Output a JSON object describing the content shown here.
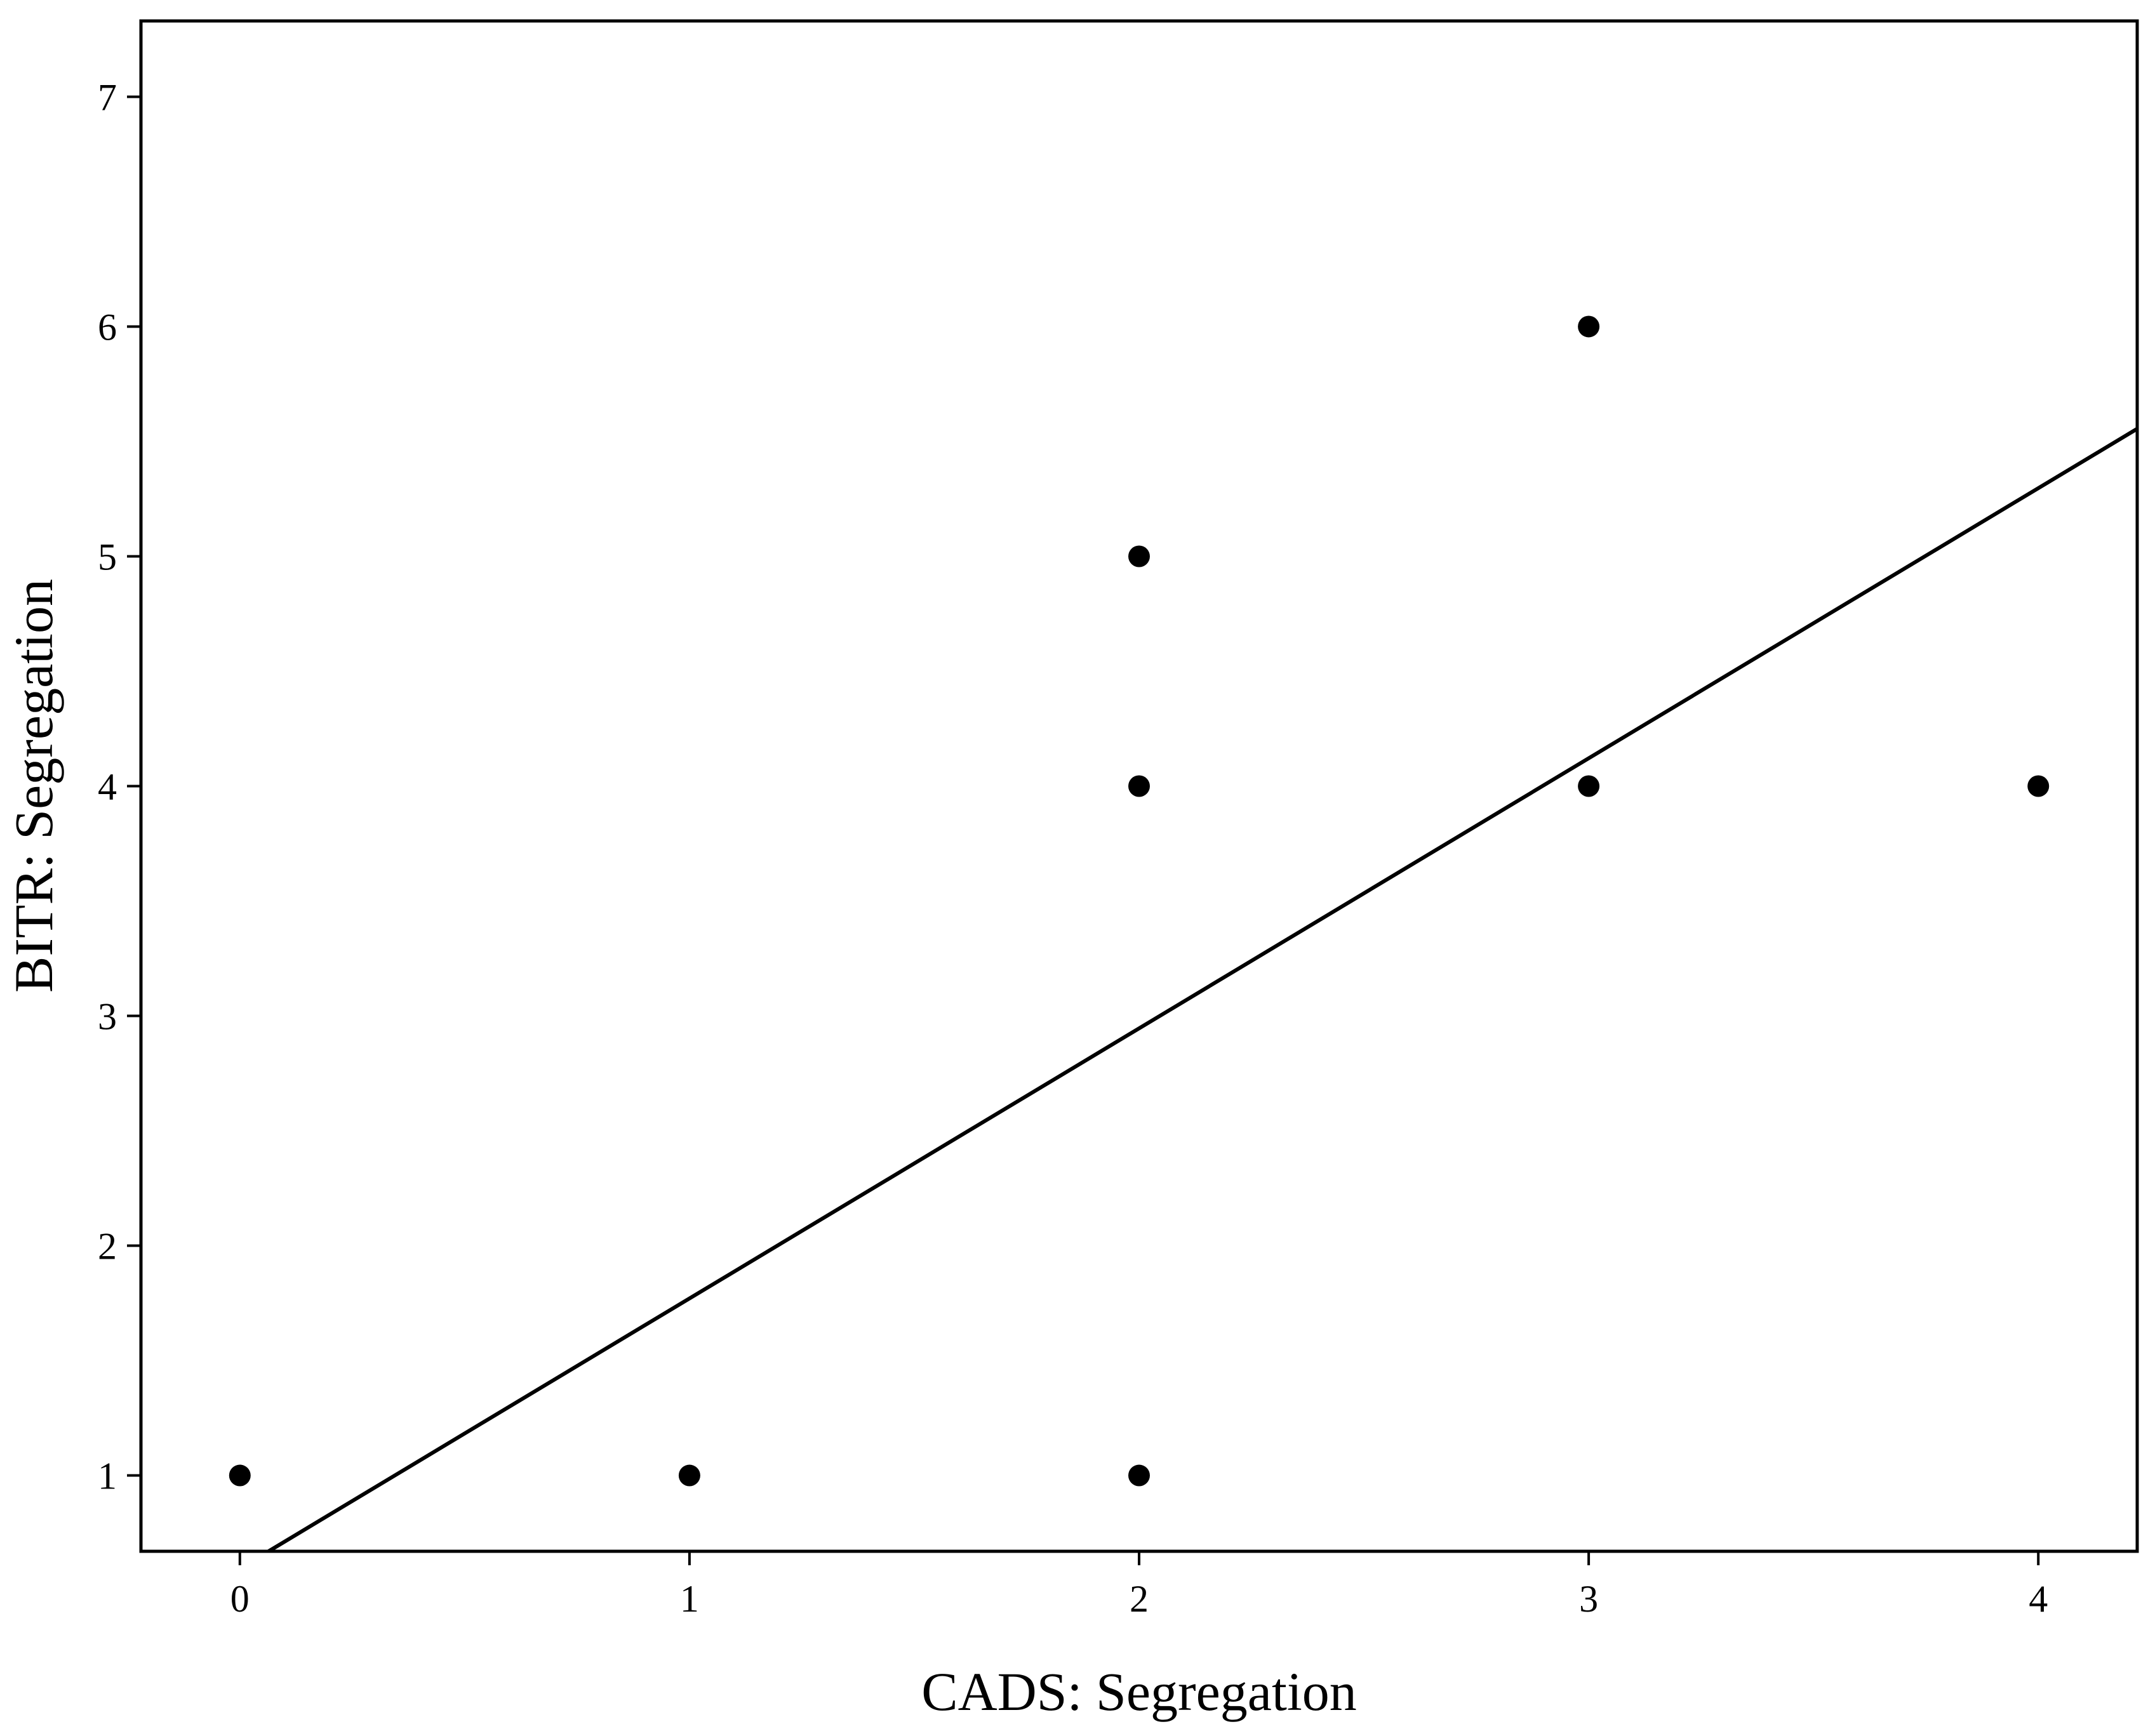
{
  "chart_data": {
    "type": "scatter",
    "title": "",
    "xlabel": "CADS: Segregation",
    "ylabel": "BITR: Segregation",
    "xlim": [
      -0.22,
      4.22
    ],
    "ylim": [
      0.67,
      7.33
    ],
    "x_ticks": [
      0,
      1,
      2,
      3,
      4
    ],
    "y_ticks": [
      1,
      2,
      3,
      4,
      5,
      6,
      7
    ],
    "grid": false,
    "legend": "none",
    "points": [
      {
        "x": 0,
        "y": 1
      },
      {
        "x": 1,
        "y": 1
      },
      {
        "x": 2,
        "y": 1
      },
      {
        "x": 2,
        "y": 4
      },
      {
        "x": 2,
        "y": 5
      },
      {
        "x": 3,
        "y": 4
      },
      {
        "x": 3,
        "y": 6
      },
      {
        "x": 4,
        "y": 4
      }
    ],
    "fit_line": {
      "slope": 1.1754,
      "intercept": 0.595
    },
    "colors": {
      "points": "#000000",
      "line": "#000000",
      "frame": "#000000"
    }
  }
}
